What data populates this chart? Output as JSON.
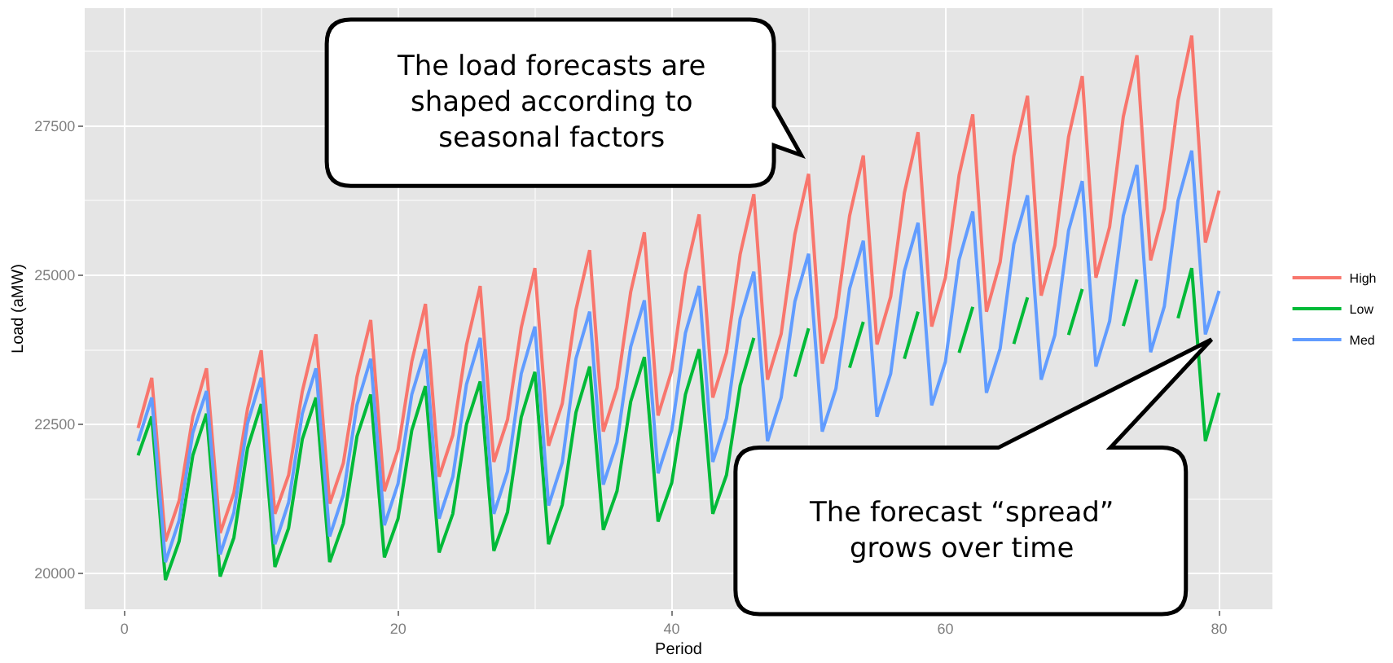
{
  "chart_data": {
    "type": "line",
    "xlabel": "Period",
    "ylabel": "Load (aMW)",
    "x": [
      1,
      2,
      3,
      4,
      5,
      6,
      7,
      8,
      9,
      10,
      11,
      12,
      13,
      14,
      15,
      16,
      17,
      18,
      19,
      20,
      21,
      22,
      23,
      24,
      25,
      26,
      27,
      28,
      29,
      30,
      31,
      32,
      33,
      34,
      35,
      36,
      37,
      38,
      39,
      40,
      41,
      42,
      43,
      44,
      45,
      46,
      47,
      48,
      49,
      50,
      51,
      52,
      53,
      54,
      55,
      56,
      57,
      58,
      59,
      60,
      61,
      62,
      63,
      64,
      65,
      66,
      67,
      68,
      69,
      70,
      71,
      72,
      73,
      74,
      75,
      76,
      77,
      78,
      79,
      80
    ],
    "series": [
      {
        "name": "High",
        "color": "#f8766d",
        "values": [
          22440,
          23280,
          20540,
          21220,
          22630,
          23440,
          20680,
          21350,
          22760,
          23740,
          21000,
          21650,
          23050,
          24010,
          21170,
          21850,
          23300,
          24250,
          21380,
          22080,
          23550,
          24520,
          21620,
          22320,
          23830,
          24820,
          21870,
          22580,
          24120,
          25120,
          22140,
          22850,
          24420,
          25420,
          22380,
          23110,
          24720,
          25720,
          22650,
          23400,
          25020,
          26020,
          22950,
          23700,
          25350,
          26360,
          23250,
          24020,
          25690,
          26700,
          23520,
          24300,
          26000,
          27010,
          23840,
          24640,
          26380,
          27400,
          24140,
          24960,
          26680,
          27700,
          24390,
          25220,
          27000,
          28010,
          24660,
          25500,
          27320,
          28340,
          24960,
          25810,
          27660,
          28690,
          25250,
          26120,
          27930,
          29020,
          25550,
          26420
        ]
      },
      {
        "name": "Low",
        "color": "#00ba38",
        "values": [
          21980,
          22630,
          19890,
          20540,
          21980,
          22680,
          19950,
          20600,
          22100,
          22840,
          20110,
          20760,
          22250,
          22950,
          20190,
          20840,
          22300,
          23000,
          20270,
          20920,
          22400,
          23140,
          20350,
          21000,
          22500,
          23220,
          20380,
          21030,
          22620,
          23380,
          20490,
          21150,
          22700,
          23470,
          20730,
          21380,
          22880,
          23630,
          20870,
          21520,
          23000,
          23760,
          21000,
          21650,
          23150,
          23950,
          null,
          null,
          23300,
          24110,
          null,
          null,
          23450,
          24220,
          null,
          null,
          23600,
          24390,
          null,
          null,
          23700,
          24470,
          null,
          null,
          23850,
          24630,
          null,
          null,
          24000,
          24770,
          null,
          null,
          24150,
          24930,
          null,
          null,
          24280,
          25120,
          22220,
          23030
        ]
      },
      {
        "name": "Med",
        "color": "#619cff",
        "values": [
          22220,
          22950,
          20190,
          20890,
          22360,
          23060,
          20320,
          21020,
          22520,
          23280,
          20490,
          21190,
          22680,
          23440,
          20620,
          21320,
          22830,
          23600,
          20810,
          21510,
          23000,
          23760,
          20920,
          21620,
          23170,
          23950,
          21000,
          21710,
          23350,
          24140,
          21140,
          21860,
          23600,
          24390,
          21490,
          22200,
          23800,
          24580,
          21680,
          22400,
          24030,
          24820,
          21870,
          22600,
          24270,
          25060,
          22220,
          22950,
          24560,
          25360,
          22380,
          23100,
          24780,
          25580,
          22630,
          23350,
          25070,
          25880,
          22820,
          23550,
          25260,
          26070,
          23030,
          23770,
          25520,
          26340,
          23250,
          24000,
          25750,
          26580,
          23470,
          24230,
          26000,
          26850,
          23710,
          24480,
          26250,
          27090,
          24010,
          24740
        ]
      }
    ],
    "xlim": [
      -2.9,
      83.9
    ],
    "xticks": [
      0,
      20,
      40,
      60,
      80
    ],
    "ylim": [
      19400,
      29480
    ],
    "yticks": [
      20000,
      22500,
      25000,
      27500
    ],
    "grid": true,
    "legend": "right",
    "line_style": "solid",
    "marker": "none",
    "annotations": [
      "The load forecasts are\nshaped according to\nseasonal factors",
      "The forecast “spread”\ngrows over time"
    ]
  }
}
